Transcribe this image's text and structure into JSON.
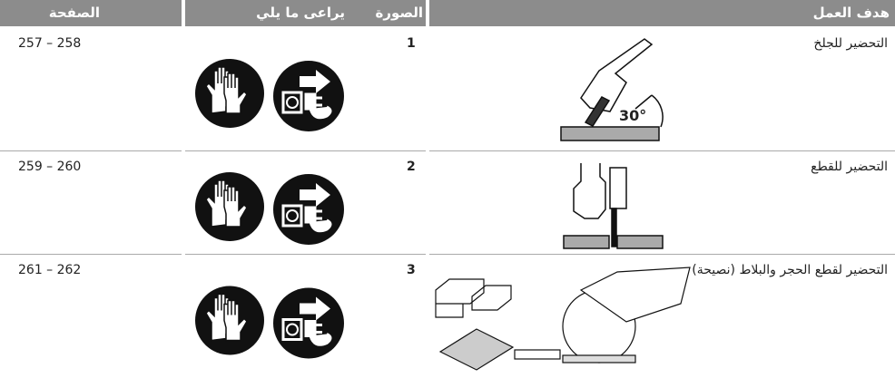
{
  "header": {
    "task": "هدف العمل",
    "figure": "الصورة",
    "note": "يراعى ما يلي",
    "page": "الصفحة"
  },
  "rows": [
    {
      "task": "التحضير للجلخ",
      "figure": "1",
      "page": "257 – 258",
      "figure_label": "30°"
    },
    {
      "task": "التحضير للقطع",
      "figure": "2",
      "page": "259 – 260"
    },
    {
      "task": "التحضير لقطع الحجر والبلاط (نصيحة)",
      "figure": "3",
      "page": "261 – 262"
    }
  ]
}
